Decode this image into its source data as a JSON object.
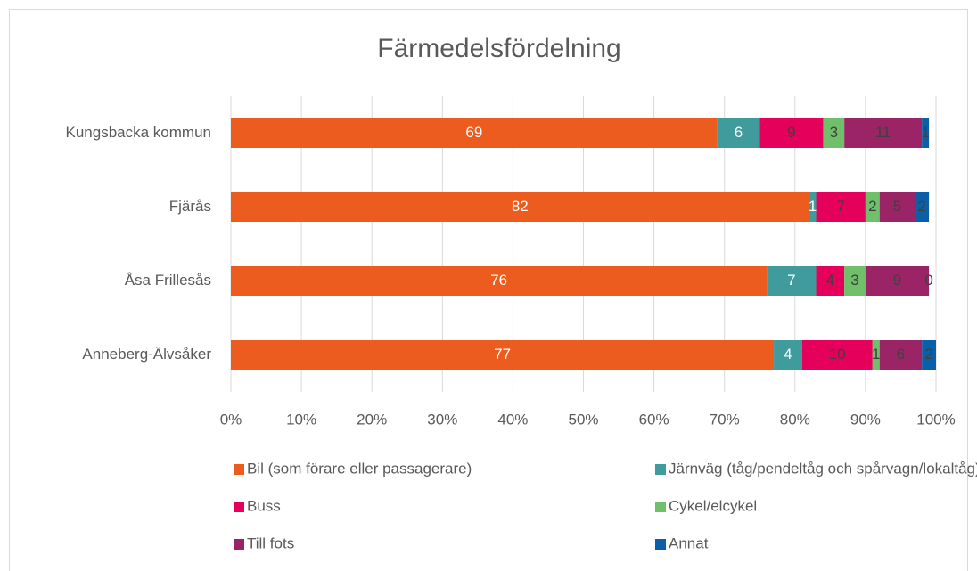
{
  "chart_data": {
    "type": "stacked-barh",
    "title": "Färmedelsfördelning",
    "categories": [
      "Kungsbacka kommun",
      "Fjärås",
      "Åsa Frillesås",
      "Anneberg-Älvsåker"
    ],
    "series": [
      {
        "name": "Bil (som förare eller passagerare)",
        "color": "#eb5c1e",
        "values": [
          69,
          82,
          76,
          77
        ]
      },
      {
        "name": "Järnväg (tåg/pendeltåg och spårvagn/lokaltåg)",
        "color": "#3f9b9c",
        "values": [
          6,
          1,
          7,
          4
        ]
      },
      {
        "name": "Buss",
        "color": "#e4005b",
        "values": [
          9,
          7,
          4,
          10
        ]
      },
      {
        "name": "Cykel/elcykel",
        "color": "#6fbf6b",
        "values": [
          3,
          2,
          3,
          1
        ]
      },
      {
        "name": "Till fots",
        "color": "#9b2466",
        "values": [
          11,
          5,
          9,
          6
        ]
      },
      {
        "name": "Annat",
        "color": "#0b5ea8",
        "values": [
          1,
          2,
          0,
          2
        ]
      }
    ],
    "xlim": [
      0,
      100
    ],
    "xticks": [
      {
        "value": 0,
        "label": "0%"
      },
      {
        "value": 10,
        "label": "10%"
      },
      {
        "value": 20,
        "label": "20%"
      },
      {
        "value": 30,
        "label": "30%"
      },
      {
        "value": 40,
        "label": "40%"
      },
      {
        "value": 50,
        "label": "50%"
      },
      {
        "value": 60,
        "label": "60%"
      },
      {
        "value": 70,
        "label": "70%"
      },
      {
        "value": 80,
        "label": "80%"
      },
      {
        "value": 90,
        "label": "90%"
      },
      {
        "value": 100,
        "label": "100%"
      }
    ],
    "grid": true,
    "legend": "bottom"
  }
}
